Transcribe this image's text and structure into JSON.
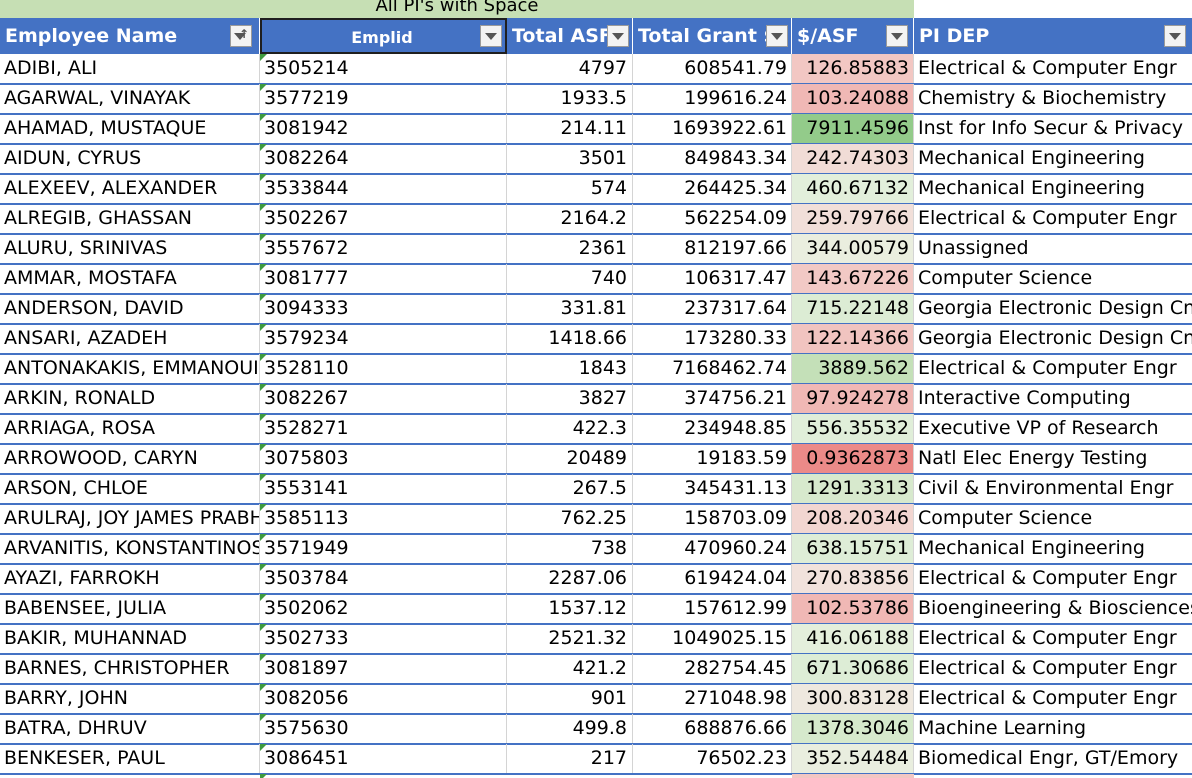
{
  "sheet": {
    "title": "All PI's with Space",
    "columns": [
      {
        "key": "name",
        "label": "Employee Name"
      },
      {
        "key": "emplid",
        "label": "Emplid"
      },
      {
        "key": "asf",
        "label": "Total ASF"
      },
      {
        "key": "grant",
        "label": "Total Grant $"
      },
      {
        "key": "ratio",
        "label": "$/ASF"
      },
      {
        "key": "dep",
        "label": "PI DEP"
      }
    ],
    "filter_icon": "dropdown-filter-icon",
    "sort_icon": "sort-ascending-icon",
    "colors": {
      "header_bg": "#4472c4",
      "title_bg": "#c6dfb4",
      "green_scale": "#63be7b",
      "red_scale": "#f8696b",
      "error_indicator": "#3f9b3f"
    },
    "rows": [
      {
        "name": "ADIBI, ALI",
        "emplid": "3505214",
        "asf": "4797",
        "grant": "608541.79",
        "ratio": "126.85883",
        "dep": "Electrical & Computer Engr",
        "bg": "#f2c7c3"
      },
      {
        "name": "AGARWAL, VINAYAK",
        "emplid": "3577219",
        "asf": "1933.5",
        "grant": "199616.24",
        "ratio": "103.24088",
        "dep": "Chemistry & Biochemistry",
        "bg": "#f0b8b5"
      },
      {
        "name": "AHAMAD, MUSTAQUE",
        "emplid": "3081942",
        "asf": "214.11",
        "grant": "1693922.61",
        "ratio": "7911.4596",
        "dep": "Inst for Info Secur & Privacy",
        "bg": "#93cb8a"
      },
      {
        "name": "AIDUN, CYRUS",
        "emplid": "3082264",
        "asf": "3501",
        "grant": "849843.34",
        "ratio": "242.74303",
        "dep": "Mechanical Engineering",
        "bg": "#f1dcd6"
      },
      {
        "name": "ALEXEEV, ALEXANDER",
        "emplid": "3533844",
        "asf": "574",
        "grant": "264425.34",
        "ratio": "460.67132",
        "dep": "Mechanical Engineering",
        "bg": "#e2efdb"
      },
      {
        "name": "ALREGIB, GHASSAN",
        "emplid": "3502267",
        "asf": "2164.2",
        "grant": "562254.09",
        "ratio": "259.79766",
        "dep": "Electrical & Computer Engr",
        "bg": "#f1dfd9"
      },
      {
        "name": "ALURU, SRINIVAS",
        "emplid": "3557672",
        "asf": "2361",
        "grant": "812197.66",
        "ratio": "344.00579",
        "dep": "Unassigned",
        "bg": "#eaeedf"
      },
      {
        "name": "AMMAR, MOSTAFA",
        "emplid": "3081777",
        "asf": "740",
        "grant": "106317.47",
        "ratio": "143.67226",
        "dep": "Computer Science",
        "bg": "#f2c9c5"
      },
      {
        "name": "ANDERSON, DAVID",
        "emplid": "3094333",
        "asf": "331.81",
        "grant": "237317.64",
        "ratio": "715.22148",
        "dep": "Georgia Electronic Design Cntr",
        "bg": "#dcecd4"
      },
      {
        "name": "ANSARI, AZADEH",
        "emplid": "3579234",
        "asf": "1418.66",
        "grant": "173280.33",
        "ratio": "122.14366",
        "dep": "Georgia Electronic Design Cntr",
        "bg": "#f1c4c0"
      },
      {
        "name": "ANTONAKAKIS, EMMANOUIL",
        "emplid": "3528110",
        "asf": "1843",
        "grant": "7168462.74",
        "ratio": "3889.562",
        "dep": "Electrical & Computer Engr",
        "bg": "#c4e0b8"
      },
      {
        "name": "ARKIN, RONALD",
        "emplid": "3082267",
        "asf": "3827",
        "grant": "374756.21",
        "ratio": "97.924278",
        "dep": "Interactive Computing",
        "bg": "#f0b8b5"
      },
      {
        "name": "ARRIAGA, ROSA",
        "emplid": "3528271",
        "asf": "422.3",
        "grant": "234948.85",
        "ratio": "556.35532",
        "dep": "Executive VP of Research",
        "bg": "#e0eed9"
      },
      {
        "name": "ARROWOOD, CARYN",
        "emplid": "3075803",
        "asf": "20489",
        "grant": "19183.59",
        "ratio": "0.9362873",
        "dep": "Natl Elec Energy Testing",
        "bg": "#eb8a88"
      },
      {
        "name": "ARSON, CHLOE",
        "emplid": "3553141",
        "asf": "267.5",
        "grant": "345431.13",
        "ratio": "1291.3313",
        "dep": "Civil & Environmental Engr",
        "bg": "#d7e9cd"
      },
      {
        "name": "ARULRAJ, JOY JAMES PRABH",
        "emplid": "3585113",
        "asf": "762.25",
        "grant": "158703.09",
        "ratio": "208.20346",
        "dep": "Computer Science",
        "bg": "#f2d6d1"
      },
      {
        "name": "ARVANITIS, KONSTANTINOS",
        "emplid": "3571949",
        "asf": "738",
        "grant": "470960.24",
        "ratio": "638.15751",
        "dep": "Mechanical Engineering",
        "bg": "#deedd7"
      },
      {
        "name": "AYAZI, FARROKH",
        "emplid": "3503784",
        "asf": "2287.06",
        "grant": "619424.04",
        "ratio": "270.83856",
        "dep": "Electrical & Computer Engr",
        "bg": "#f1e2dc"
      },
      {
        "name": "BABENSEE, JULIA",
        "emplid": "3502062",
        "asf": "1537.12",
        "grant": "157612.99",
        "ratio": "102.53786",
        "dep": "Bioengineering & Biosciences",
        "bg": "#f0b8b5"
      },
      {
        "name": "BAKIR, MUHANNAD",
        "emplid": "3502733",
        "asf": "2521.32",
        "grant": "1049025.15",
        "ratio": "416.06188",
        "dep": "Electrical & Computer Engr",
        "bg": "#e4efdc"
      },
      {
        "name": "BARNES, CHRISTOPHER",
        "emplid": "3081897",
        "asf": "421.2",
        "grant": "282754.45",
        "ratio": "671.30686",
        "dep": "Electrical & Computer Engr",
        "bg": "#ddedd6"
      },
      {
        "name": "BARRY, JOHN",
        "emplid": "3082056",
        "asf": "901",
        "grant": "271048.98",
        "ratio": "300.83128",
        "dep": "Electrical & Computer Engr",
        "bg": "#eee8df"
      },
      {
        "name": "BATRA, DHRUV",
        "emplid": "3575630",
        "asf": "499.8",
        "grant": "688876.66",
        "ratio": "1378.3046",
        "dep": "Machine Learning",
        "bg": "#d6e9cc"
      },
      {
        "name": "BENKESER, PAUL",
        "emplid": "3086451",
        "asf": "217",
        "grant": "76502.23",
        "ratio": "352.54484",
        "dep": "Biomedical Engr, GT/Emory",
        "bg": "#e9eedf"
      }
    ]
  }
}
